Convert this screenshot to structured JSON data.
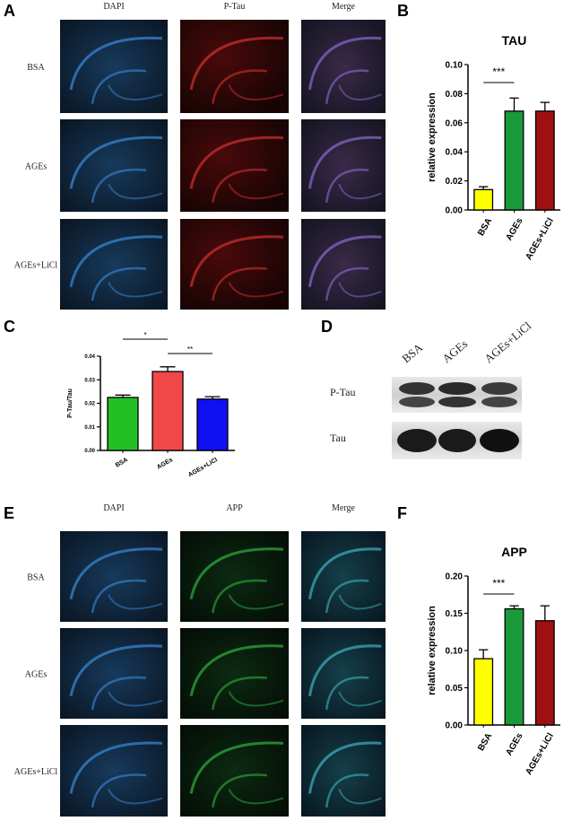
{
  "figure": {
    "panel_labels": [
      "A",
      "B",
      "C",
      "D",
      "E",
      "F"
    ],
    "panel_a": {
      "columns": [
        "DAPI",
        "P-Tau",
        "Merge"
      ],
      "rows": [
        "BSA",
        "AGEs",
        "AGEs+LiCl"
      ]
    },
    "panel_d": {
      "lanes": [
        "BSA",
        "AGEs",
        "AGEs+LiCl"
      ],
      "bands": [
        "P-Tau",
        "Tau"
      ]
    },
    "panel_e": {
      "columns": [
        "DAPI",
        "APP",
        "Merge"
      ],
      "rows": [
        "BSA",
        "AGEs",
        "AGEs+LiCl"
      ]
    }
  },
  "chart_data": [
    {
      "type": "bar",
      "title": "TAU",
      "ylabel": "relative expression",
      "categories": [
        "BSA",
        "AGEs",
        "AGEs+LiCl"
      ],
      "values": [
        0.014,
        0.068,
        0.068
      ],
      "errors": [
        0.002,
        0.009,
        0.006
      ],
      "colors": [
        "#ffff00",
        "#1a9a3a",
        "#a01010"
      ],
      "ylim": [
        0,
        0.1
      ],
      "yticks": [
        {
          "value": 0,
          "label": "0.00"
        },
        {
          "value": 0.02,
          "label": "0.02"
        },
        {
          "value": 0.04,
          "label": "0.04"
        },
        {
          "value": 0.06,
          "label": "0.06"
        },
        {
          "value": 0.08,
          "label": "0.08"
        },
        {
          "value": 0.1,
          "label": "0.10"
        }
      ],
      "annotations": [
        "***"
      ]
    },
    {
      "type": "bar",
      "ylabel": "P-Tau/Tau",
      "categories": [
        "BSA",
        "AGEs",
        "AGEs+LiCl"
      ],
      "values": [
        0.0225,
        0.0335,
        0.0218
      ],
      "errors": [
        0.001,
        0.002,
        0.001
      ],
      "colors": [
        "#22c022",
        "#f04848",
        "#1010f0"
      ],
      "ylim": [
        0,
        0.04
      ],
      "yticks": [
        {
          "value": 0,
          "label": "0.00"
        },
        {
          "value": 0.01,
          "label": "0.01"
        },
        {
          "value": 0.02,
          "label": "0.02"
        },
        {
          "value": 0.03,
          "label": "0.03"
        },
        {
          "value": 0.04,
          "label": "0.04"
        }
      ],
      "annotations": [
        "*",
        "**"
      ]
    },
    {
      "type": "bar",
      "title": "APP",
      "ylabel": "relative expression",
      "categories": [
        "BSA",
        "AGEs",
        "AGEs+LiCl"
      ],
      "values": [
        0.089,
        0.156,
        0.14
      ],
      "errors": [
        0.012,
        0.004,
        0.02
      ],
      "colors": [
        "#ffff00",
        "#1a9a3a",
        "#a01010"
      ],
      "ylim": [
        0,
        0.2
      ],
      "yticks": [
        {
          "value": 0,
          "label": "0.00"
        },
        {
          "value": 0.05,
          "label": "0.05"
        },
        {
          "value": 0.1,
          "label": "0.10"
        },
        {
          "value": 0.15,
          "label": "0.15"
        },
        {
          "value": 0.2,
          "label": "0.20"
        }
      ],
      "annotations": [
        "***"
      ]
    }
  ]
}
